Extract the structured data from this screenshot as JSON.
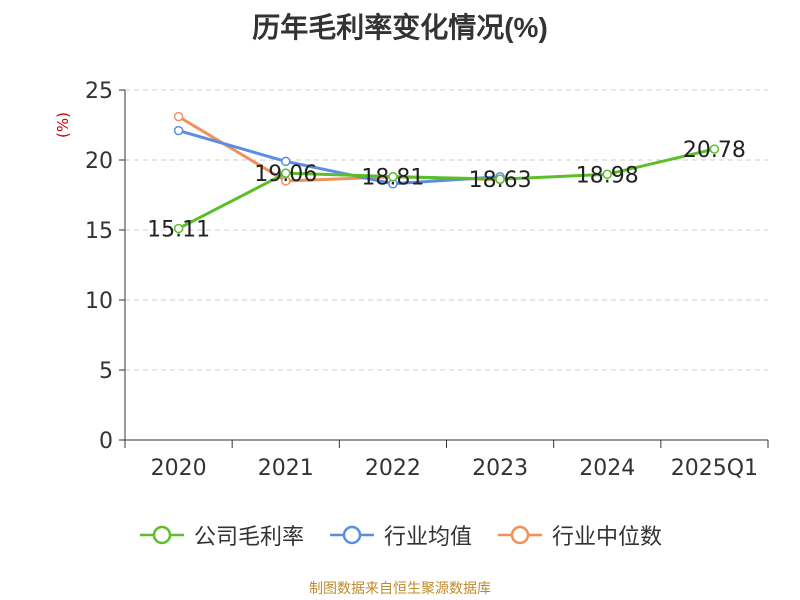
{
  "title": "历年毛利率变化情况(%)",
  "source_note": "制图数据来自恒生聚源数据库",
  "chart_data": {
    "type": "line",
    "title": "历年毛利率变化情况(%)",
    "xlabel": "",
    "ylabel": "(%)",
    "categories": [
      "2020",
      "2021",
      "2022",
      "2023",
      "2024",
      "2025Q1"
    ],
    "ylim": [
      0,
      25
    ],
    "yticks": [
      0,
      5,
      10,
      15,
      20,
      25
    ],
    "grid": "horizontal-dashed",
    "legend_position": "bottom",
    "series": [
      {
        "name": "公司毛利率",
        "color": "#5cbf2a",
        "values": [
          15.11,
          19.06,
          18.81,
          18.63,
          18.98,
          20.78
        ],
        "labels": [
          "15.11",
          "19.06",
          "18.81",
          "18.63",
          "18.98",
          "20.78"
        ]
      },
      {
        "name": "行业均值",
        "color": "#5b8ee0",
        "values": [
          22.1,
          19.9,
          18.3,
          18.8,
          null,
          null
        ]
      },
      {
        "name": "行业中位数",
        "color": "#f0905a",
        "values": [
          23.1,
          18.5,
          18.8,
          18.6,
          null,
          null
        ]
      }
    ]
  }
}
